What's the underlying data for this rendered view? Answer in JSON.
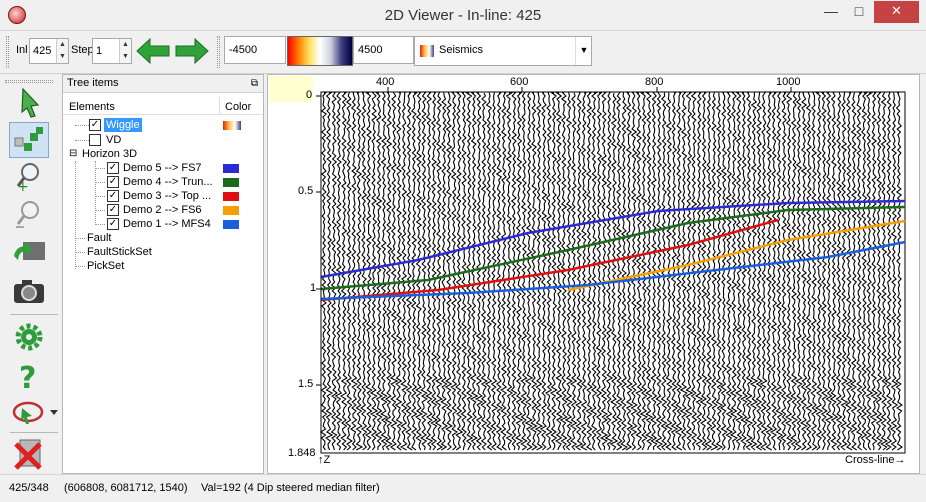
{
  "window": {
    "title": "2D Viewer - In-line: 425",
    "min": "—",
    "max": "□",
    "close": "✕"
  },
  "toolbar": {
    "inl_label": "Inl",
    "inl_value": "425",
    "step_label": "Step",
    "step_value": "1",
    "range_min": "-4500",
    "range_max": "4500",
    "colortable": "Seismics"
  },
  "tree": {
    "title": "Tree items",
    "col_elements": "Elements",
    "col_color": "Color",
    "wiggle": "Wiggle",
    "vd": "VD",
    "horizon3d": "Horizon 3D",
    "horizons": [
      {
        "label": "Demo 5 --> FS7",
        "color": "#2b2bd6"
      },
      {
        "label": "Demo 4 --> Trun...",
        "color": "#1a6b1a"
      },
      {
        "label": "Demo 3 --> Top ...",
        "color": "#e01010"
      },
      {
        "label": "Demo 2 --> FS6",
        "color": "#f5a000"
      },
      {
        "label": "Demo 1 --> MFS4",
        "color": "#1a5ee0"
      }
    ],
    "fault": "Fault",
    "faultstickset": "FaultStickSet",
    "pickset": "PickSet"
  },
  "plot": {
    "x_ticks": [
      "400",
      "600",
      "800",
      "1000"
    ],
    "y_ticks": [
      "0",
      "0.5",
      "1",
      "1.5",
      "1.848"
    ],
    "z_label": "Z",
    "crossline_label": "Cross-line"
  },
  "status": {
    "position": "425/348",
    "coords": "(606808, 6081712, 1540)",
    "value": "Val=192 (4 Dip steered median filter)"
  }
}
